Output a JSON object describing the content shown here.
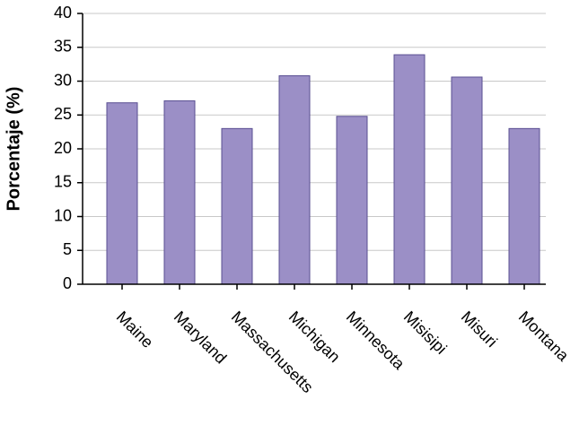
{
  "chart_data": {
    "type": "bar",
    "ylabel": "Porcentaje (%)",
    "categories": [
      "Maine",
      "Maryland",
      "Massachusetts",
      "Michigan",
      "Minnesota",
      "Misisipi",
      "Misuri",
      "Montana"
    ],
    "values": [
      26.8,
      27.1,
      23,
      30.8,
      24.8,
      33.9,
      30.6,
      23
    ],
    "color": "#9b8fc6",
    "ylim": [
      0,
      40
    ],
    "yticks": [
      0,
      5,
      10,
      15,
      20,
      25,
      30,
      35,
      40
    ],
    "grid": true
  }
}
